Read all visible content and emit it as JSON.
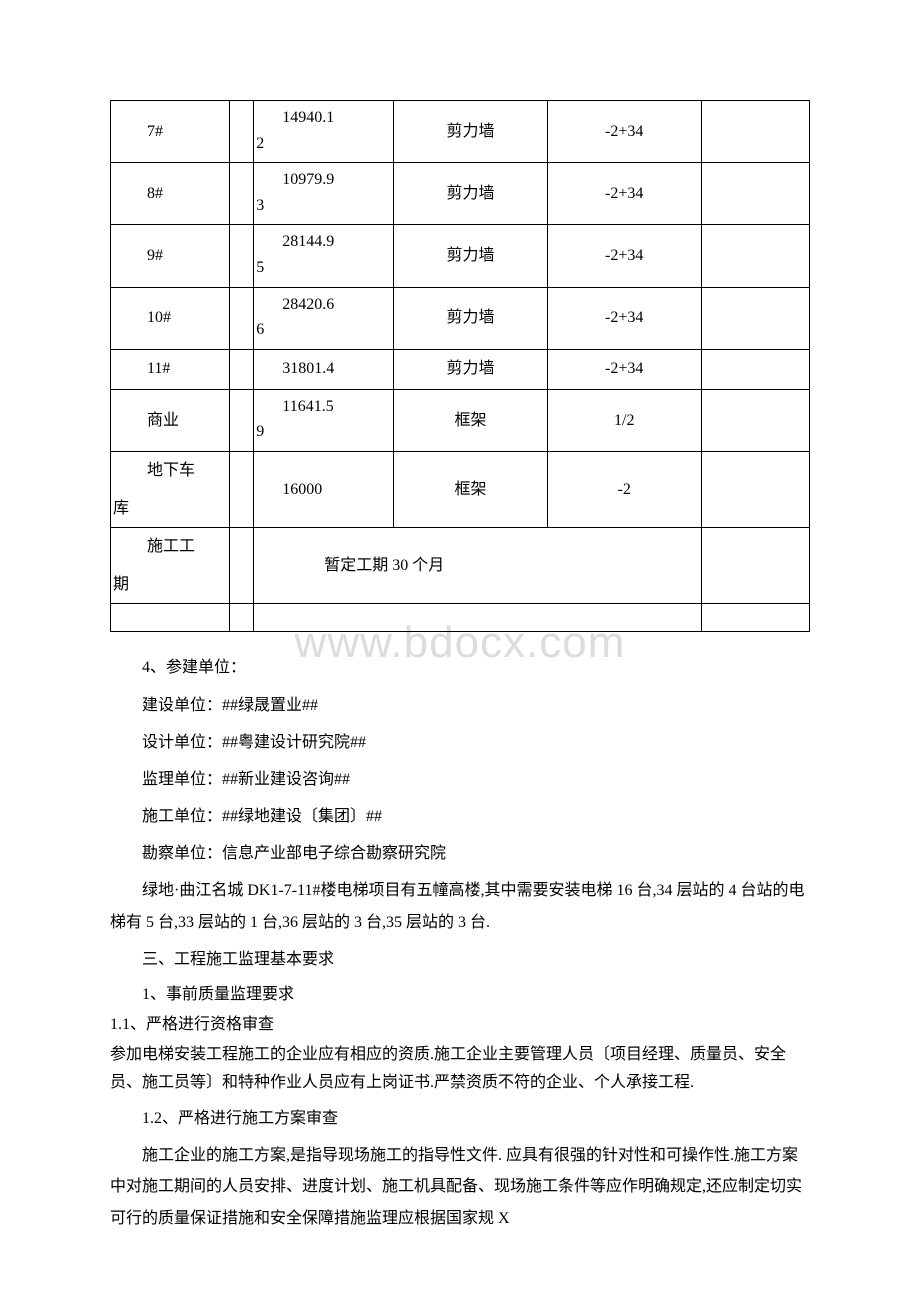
{
  "watermark": "www.bdocx.com",
  "table": {
    "rows": [
      {
        "c1": "7#",
        "c3a": "14940.1",
        "c3b": "2",
        "c4": "剪力墙",
        "c5": "-2+34",
        "height": "tall"
      },
      {
        "c1": "8#",
        "c3a": "10979.9",
        "c3b": "3",
        "c4": "剪力墙",
        "c5": "-2+34",
        "height": "tall"
      },
      {
        "c1": "9#",
        "c3a": "28144.9",
        "c3b": "5",
        "c4": "剪力墙",
        "c5": "-2+34",
        "height": "tall"
      },
      {
        "c1": "10#",
        "c3a": "28420.6",
        "c3b": "6",
        "c4": "剪力墙",
        "c5": "-2+34",
        "height": "tall"
      },
      {
        "c1": "11#",
        "c3_single": "31801.4",
        "c4": "剪力墙",
        "c5": "-2+34",
        "height": "short"
      },
      {
        "c1": "商业",
        "c3a": "11641.5",
        "c3b": "9",
        "c4": "框架",
        "c5": "1/2",
        "height": "tall"
      },
      {
        "c1_two": [
          "地下车",
          "库"
        ],
        "c3_single": "16000",
        "c4": "框架",
        "c5": "-2",
        "height": "tall"
      }
    ],
    "period_row": {
      "c1_two": [
        "施工工",
        "期"
      ],
      "merged": "暂定工期 30 个月"
    }
  },
  "body": {
    "p1": "4、参建单位：",
    "p2": "建设单位：##绿晟置业##",
    "p3": "设计单位：##粤建设计研究院##",
    "p4": "监理单位：##新业建设咨询##",
    "p5": "施工单位：##绿地建设〔集团〕##",
    "p6": "勘察单位：信息产业部电子综合勘察研究院",
    "p7": "绿地·曲江名城 DK1-7-11#楼电梯项目有五幢高楼,其中需要安装电梯 16 台,34 层站的 4 台站的电梯有 5 台,33 层站的 1 台,36 层站的 3 台,35 层站的 3 台.",
    "p8": "三、工程施工监理基本要求",
    "p9": "1、事前质量监理要求",
    "p10": "1.1、严格进行资格审查",
    "p11": " 参加电梯安装工程施工的企业应有相应的资质.施工企业主要管理人员〔项目经理、质量员、安全员、施工员等〕和特种作业人员应有上岗证书.严禁资质不符的企业、个人承接工程.",
    "p12": "1.2、严格进行施工方案审查",
    "p13": "施工企业的施工方案,是指导现场施工的指导性文件.  应具有很强的针对性和可操作性.施工方案中对施工期间的人员安排、进度计划、施工机具配备、现场施工条件等应作明确规定,还应制定切实可行的质量保证措施和安全保障措施监理应根据国家规 X"
  }
}
